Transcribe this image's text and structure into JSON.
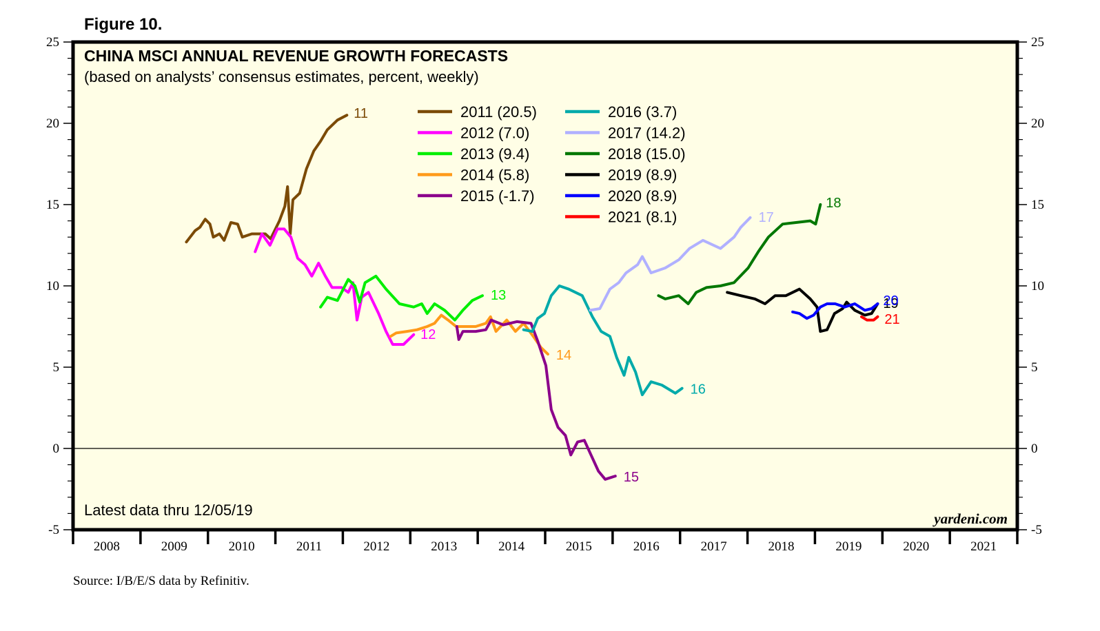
{
  "figure_label": "Figure 10.",
  "chart_data": {
    "type": "line",
    "title": "CHINA MSCI ANNUAL REVENUE GROWTH FORECASTS",
    "subtitle": "(based on analysts’ consensus estimates, percent, weekly)",
    "xlabel": "",
    "ylabel": "",
    "xlim": [
      2008,
      2022
    ],
    "ylim": [
      -5,
      25
    ],
    "y_ticks": [
      25,
      20,
      15,
      10,
      5,
      0,
      -5
    ],
    "y_minor_step": 1,
    "x_tick_labels": [
      "2008",
      "2009",
      "2010",
      "2011",
      "2012",
      "2013",
      "2014",
      "2015",
      "2016",
      "2017",
      "2018",
      "2019",
      "2020",
      "2021"
    ],
    "reference_line": 0,
    "legend_position": "top-center",
    "note": "Latest data thru  12/05/19",
    "watermark": "yardeni.com",
    "source": "Source: I/B/E/S data by Refinitiv.",
    "series": [
      {
        "name": "2011",
        "legend": "2011 (20.5)",
        "end_label": "11",
        "color": "#7b4a06",
        "points": [
          [
            2009.68,
            12.7
          ],
          [
            2009.81,
            13.4
          ],
          [
            2009.88,
            13.6
          ],
          [
            2009.96,
            14.1
          ],
          [
            2010.03,
            13.8
          ],
          [
            2010.08,
            13.0
          ],
          [
            2010.17,
            13.2
          ],
          [
            2010.24,
            12.8
          ],
          [
            2010.34,
            13.9
          ],
          [
            2010.44,
            13.8
          ],
          [
            2010.51,
            13.0
          ],
          [
            2010.65,
            13.2
          ],
          [
            2010.85,
            13.2
          ],
          [
            2010.93,
            12.9
          ],
          [
            2011.06,
            14.0
          ],
          [
            2011.14,
            14.9
          ],
          [
            2011.18,
            16.1
          ],
          [
            2011.22,
            13.2
          ],
          [
            2011.26,
            15.3
          ],
          [
            2011.36,
            15.7
          ],
          [
            2011.46,
            17.2
          ],
          [
            2011.57,
            18.3
          ],
          [
            2011.67,
            18.9
          ],
          [
            2011.77,
            19.6
          ],
          [
            2011.92,
            20.2
          ],
          [
            2012.06,
            20.5
          ]
        ]
      },
      {
        "name": "2012",
        "legend": "2012 (7.0)",
        "end_label": "12",
        "color": "#ff00ff",
        "points": [
          [
            2010.7,
            12.1
          ],
          [
            2010.8,
            13.2
          ],
          [
            2010.92,
            12.5
          ],
          [
            2011.03,
            13.5
          ],
          [
            2011.13,
            13.5
          ],
          [
            2011.23,
            13.0
          ],
          [
            2011.33,
            11.7
          ],
          [
            2011.44,
            11.3
          ],
          [
            2011.54,
            10.6
          ],
          [
            2011.64,
            11.4
          ],
          [
            2011.74,
            10.6
          ],
          [
            2011.84,
            9.9
          ],
          [
            2011.98,
            9.9
          ],
          [
            2012.08,
            9.6
          ],
          [
            2012.15,
            10.2
          ],
          [
            2012.21,
            7.9
          ],
          [
            2012.28,
            9.3
          ],
          [
            2012.38,
            9.6
          ],
          [
            2012.53,
            8.3
          ],
          [
            2012.64,
            7.2
          ],
          [
            2012.74,
            6.4
          ],
          [
            2012.9,
            6.4
          ],
          [
            2013.05,
            7.0
          ]
        ]
      },
      {
        "name": "2013",
        "legend": "2013 (9.4)",
        "end_label": "13",
        "color": "#00ee00",
        "points": [
          [
            2011.67,
            8.7
          ],
          [
            2011.77,
            9.3
          ],
          [
            2011.92,
            9.1
          ],
          [
            2012.08,
            10.4
          ],
          [
            2012.18,
            10.0
          ],
          [
            2012.25,
            9.0
          ],
          [
            2012.33,
            10.2
          ],
          [
            2012.49,
            10.6
          ],
          [
            2012.64,
            9.8
          ],
          [
            2012.84,
            8.9
          ],
          [
            2013.05,
            8.7
          ],
          [
            2013.17,
            8.9
          ],
          [
            2013.25,
            8.3
          ],
          [
            2013.36,
            8.9
          ],
          [
            2013.51,
            8.5
          ],
          [
            2013.66,
            7.9
          ],
          [
            2013.78,
            8.5
          ],
          [
            2013.92,
            9.1
          ],
          [
            2014.07,
            9.4
          ]
        ]
      },
      {
        "name": "2014",
        "legend": "2014 (5.8)",
        "end_label": "14",
        "color": "#ff9a1a",
        "points": [
          [
            2012.71,
            6.9
          ],
          [
            2012.79,
            7.1
          ],
          [
            2012.95,
            7.2
          ],
          [
            2013.1,
            7.3
          ],
          [
            2013.25,
            7.5
          ],
          [
            2013.36,
            7.7
          ],
          [
            2013.46,
            8.2
          ],
          [
            2013.56,
            7.9
          ],
          [
            2013.68,
            7.5
          ],
          [
            2013.97,
            7.5
          ],
          [
            2014.12,
            7.7
          ],
          [
            2014.19,
            8.1
          ],
          [
            2014.27,
            7.2
          ],
          [
            2014.43,
            7.9
          ],
          [
            2014.56,
            7.2
          ],
          [
            2014.68,
            7.7
          ],
          [
            2014.84,
            6.8
          ],
          [
            2014.94,
            6.2
          ],
          [
            2015.04,
            5.8
          ]
        ]
      },
      {
        "name": "2015",
        "legend": "2015 (-1.7)",
        "end_label": "15",
        "color": "#8b008b",
        "points": [
          [
            2013.69,
            7.5
          ],
          [
            2013.72,
            6.7
          ],
          [
            2013.78,
            7.2
          ],
          [
            2013.97,
            7.2
          ],
          [
            2014.12,
            7.3
          ],
          [
            2014.2,
            7.9
          ],
          [
            2014.38,
            7.6
          ],
          [
            2014.58,
            7.8
          ],
          [
            2014.79,
            7.7
          ],
          [
            2014.89,
            6.6
          ],
          [
            2015.01,
            5.1
          ],
          [
            2015.09,
            2.4
          ],
          [
            2015.19,
            1.3
          ],
          [
            2015.3,
            0.8
          ],
          [
            2015.38,
            -0.4
          ],
          [
            2015.48,
            0.4
          ],
          [
            2015.58,
            0.5
          ],
          [
            2015.68,
            -0.4
          ],
          [
            2015.79,
            -1.4
          ],
          [
            2015.89,
            -1.9
          ],
          [
            2016.04,
            -1.7
          ]
        ]
      },
      {
        "name": "2016",
        "legend": "2016 (3.7)",
        "end_label": "16",
        "color": "#00aaaa",
        "points": [
          [
            2014.68,
            7.3
          ],
          [
            2014.81,
            7.2
          ],
          [
            2014.89,
            8.0
          ],
          [
            2014.99,
            8.3
          ],
          [
            2015.09,
            9.4
          ],
          [
            2015.21,
            10.0
          ],
          [
            2015.35,
            9.8
          ],
          [
            2015.55,
            9.4
          ],
          [
            2015.7,
            8.1
          ],
          [
            2015.83,
            7.2
          ],
          [
            2015.96,
            6.9
          ],
          [
            2016.06,
            5.6
          ],
          [
            2016.17,
            4.5
          ],
          [
            2016.24,
            5.6
          ],
          [
            2016.34,
            4.7
          ],
          [
            2016.44,
            3.3
          ],
          [
            2016.57,
            4.1
          ],
          [
            2016.73,
            3.9
          ],
          [
            2016.93,
            3.4
          ],
          [
            2017.03,
            3.7
          ]
        ]
      },
      {
        "name": "2017",
        "legend": "2017 (14.2)",
        "end_label": "17",
        "color": "#b0b0ff",
        "points": [
          [
            2015.67,
            8.5
          ],
          [
            2015.81,
            8.6
          ],
          [
            2015.96,
            9.8
          ],
          [
            2016.09,
            10.2
          ],
          [
            2016.2,
            10.8
          ],
          [
            2016.37,
            11.3
          ],
          [
            2016.44,
            11.8
          ],
          [
            2016.57,
            10.8
          ],
          [
            2016.78,
            11.1
          ],
          [
            2016.98,
            11.6
          ],
          [
            2017.14,
            12.3
          ],
          [
            2017.34,
            12.8
          ],
          [
            2017.6,
            12.3
          ],
          [
            2017.8,
            13.0
          ],
          [
            2017.9,
            13.6
          ],
          [
            2018.04,
            14.2
          ]
        ]
      },
      {
        "name": "2018",
        "legend": "2018 (15.0)",
        "end_label": "18",
        "color": "#007700",
        "points": [
          [
            2016.68,
            9.4
          ],
          [
            2016.78,
            9.2
          ],
          [
            2016.98,
            9.4
          ],
          [
            2017.12,
            8.9
          ],
          [
            2017.24,
            9.6
          ],
          [
            2017.39,
            9.9
          ],
          [
            2017.6,
            10.0
          ],
          [
            2017.8,
            10.2
          ],
          [
            2018.01,
            11.1
          ],
          [
            2018.16,
            12.1
          ],
          [
            2018.31,
            13.0
          ],
          [
            2018.52,
            13.8
          ],
          [
            2018.72,
            13.9
          ],
          [
            2018.93,
            14.0
          ],
          [
            2019.01,
            13.8
          ],
          [
            2019.08,
            15.0
          ]
        ]
      },
      {
        "name": "2019",
        "legend": "2019 (8.9)",
        "end_label": "19",
        "color": "#000000",
        "points": [
          [
            2017.7,
            9.6
          ],
          [
            2017.9,
            9.4
          ],
          [
            2018.11,
            9.2
          ],
          [
            2018.26,
            8.9
          ],
          [
            2018.41,
            9.4
          ],
          [
            2018.57,
            9.4
          ],
          [
            2018.77,
            9.8
          ],
          [
            2018.93,
            9.2
          ],
          [
            2019.03,
            8.7
          ],
          [
            2019.08,
            7.2
          ],
          [
            2019.18,
            7.3
          ],
          [
            2019.29,
            8.3
          ],
          [
            2019.41,
            8.6
          ],
          [
            2019.47,
            9.0
          ],
          [
            2019.59,
            8.5
          ],
          [
            2019.74,
            8.2
          ],
          [
            2019.84,
            8.3
          ],
          [
            2019.93,
            8.9
          ]
        ]
      },
      {
        "name": "2020",
        "legend": "2020 (8.9)",
        "end_label": "20",
        "color": "#0000ff",
        "points": [
          [
            2018.67,
            8.4
          ],
          [
            2018.77,
            8.3
          ],
          [
            2018.88,
            8.0
          ],
          [
            2018.98,
            8.2
          ],
          [
            2019.08,
            8.7
          ],
          [
            2019.18,
            8.9
          ],
          [
            2019.3,
            8.9
          ],
          [
            2019.44,
            8.7
          ],
          [
            2019.59,
            8.9
          ],
          [
            2019.74,
            8.5
          ],
          [
            2019.84,
            8.6
          ],
          [
            2019.93,
            8.9
          ]
        ]
      },
      {
        "name": "2021",
        "legend": "2021 (8.1)",
        "end_label": "21",
        "color": "#ff0000",
        "points": [
          [
            2019.69,
            8.1
          ],
          [
            2019.77,
            7.9
          ],
          [
            2019.87,
            7.9
          ],
          [
            2019.93,
            8.1
          ]
        ]
      }
    ]
  },
  "colors": {
    "plot_background": "#fffee6",
    "frame": "#000000"
  }
}
